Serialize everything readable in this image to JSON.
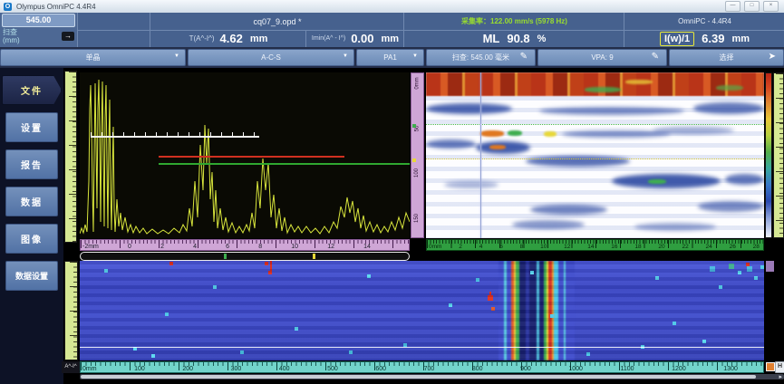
{
  "window": {
    "icon": "O",
    "title": "Olympus  OmniPC  4.4R4",
    "minimize": "—",
    "restore": "□",
    "close": "×"
  },
  "readings": {
    "scan_value": "545.00",
    "scan_label": "扫查",
    "scan_unit": "(mm)",
    "file_name": "cq07_9.opd *",
    "acq_rate": "采集率：122.00 mm/s (5978 Hz)",
    "app_header": "OmniPC - 4.4R4",
    "t_label": "T(A^-I^)",
    "t_value": "4.62",
    "t_unit": "mm",
    "imin_label": "Imin(A^ - I^)",
    "imin_value": "0.00",
    "imin_unit": "mm",
    "ml_label": "ML",
    "ml_value": "90.8",
    "ml_unit": "%",
    "iw_label": "I(w)/1",
    "iw_value": "6.39",
    "iw_unit": "mm"
  },
  "toolbar": {
    "probe_dropdown": "单晶",
    "layout_dropdown": "A-C-S",
    "group_dropdown": "PA1",
    "scan_field": "扫查: 545.00 毫米",
    "vpa_field": "VPA: 9",
    "select_button": "选择"
  },
  "icons": {
    "dropdown": "▼",
    "pencil": "✎",
    "cursor": "➤",
    "scan_arrow": "→",
    "scroll_arrow": "▸"
  },
  "sidebar": {
    "items": [
      {
        "label": "文件",
        "active": true
      },
      {
        "label": "设置",
        "active": false
      },
      {
        "label": "报告",
        "active": false
      },
      {
        "label": "数据",
        "active": false
      },
      {
        "label": "图像",
        "active": false
      },
      {
        "label": "数据设置",
        "active": false
      }
    ]
  },
  "ascan": {
    "x_ticks": [
      "-2mm",
      "0",
      "2",
      "4",
      "6",
      "8",
      "10",
      "12",
      "14"
    ]
  },
  "bscan": {
    "x_ticks": [
      "0mm",
      "2",
      "4",
      "6",
      "8",
      "10",
      "12",
      "14",
      "16",
      "18",
      "20",
      "22",
      "24",
      "26",
      "28"
    ],
    "y_ticks": [
      "0mm",
      "50",
      "100",
      "150"
    ]
  },
  "cscan": {
    "x_ticks": [
      "0mm",
      "100",
      "200",
      "300",
      "400",
      "500",
      "600",
      "700",
      "800",
      "900",
      "1000",
      "1100",
      "1200",
      "1300"
    ],
    "corner_label": "A^-I^",
    "badge": "H"
  }
}
